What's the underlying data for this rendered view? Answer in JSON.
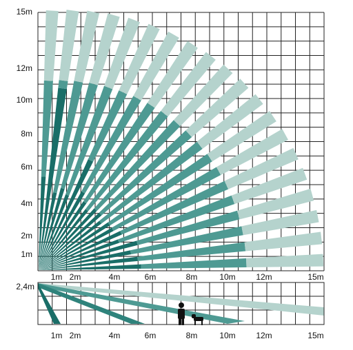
{
  "top_view": {
    "y_labels": [
      "15m",
      "12m",
      "10m",
      "8m",
      "6m",
      "4m",
      "2m",
      "1m"
    ],
    "x_labels": [
      "1m",
      "2m",
      "4m",
      "6m",
      "8m",
      "10m",
      "12m",
      "15m"
    ]
  },
  "side_view": {
    "height_label": "2,4m",
    "x_labels": [
      "1m",
      "2m",
      "4m",
      "6m",
      "8m",
      "10m",
      "12m",
      "15m"
    ]
  }
}
